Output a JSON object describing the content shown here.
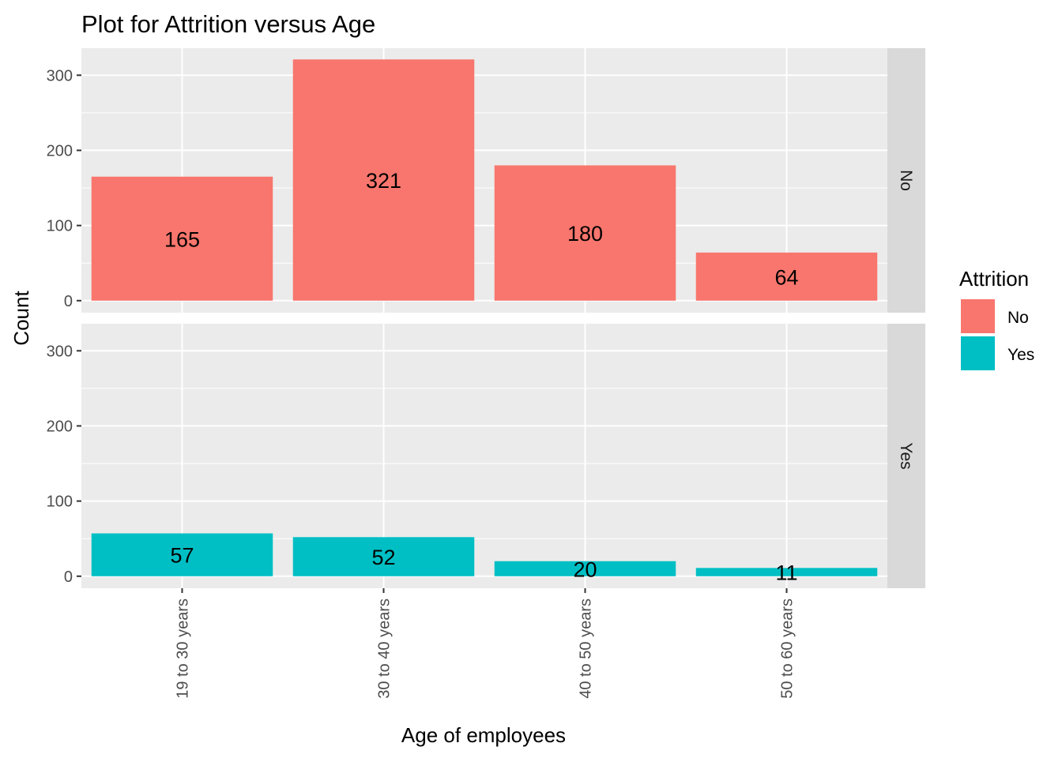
{
  "chart_data": {
    "type": "bar",
    "title": "Plot for Attrition versus Age",
    "xlabel": "Age of employees",
    "ylabel": "Count",
    "categories": [
      "19 to 30 years",
      "30 to 40 years",
      "40 to 50 years",
      "50 to 60 years"
    ],
    "yticks": [
      0,
      100,
      200,
      300
    ],
    "ylim": [
      -16,
      336
    ],
    "grid": true,
    "facet_by": "Attrition",
    "panels": [
      {
        "strip": "No",
        "fill_key": "No",
        "values": [
          165,
          321,
          180,
          64
        ]
      },
      {
        "strip": "Yes",
        "fill_key": "Yes",
        "values": [
          57,
          52,
          20,
          11
        ]
      }
    ],
    "legend": {
      "title": "Attrition",
      "position": "right",
      "entries": [
        {
          "label": "No",
          "color": "#F8766D"
        },
        {
          "label": "Yes",
          "color": "#00BFC4"
        }
      ]
    },
    "colors": {
      "panel_bg": "#EBEBEB",
      "grid": "#FFFFFF",
      "strip_bg": "#D9D9D9",
      "axis_text": "#4D4D4D",
      "text": "#000000"
    }
  }
}
